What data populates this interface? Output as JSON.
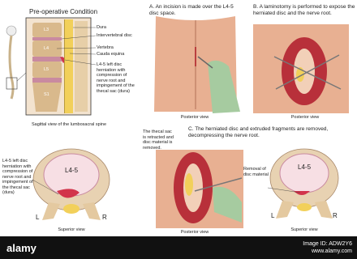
{
  "left_panel": {
    "title": "Pre-operative Condition",
    "levels": [
      "L3",
      "L4",
      "L5",
      "S1"
    ],
    "labels": [
      "Dura",
      "Intervertebral disc",
      "Vertebra",
      "Cauda equina",
      "L4-5 left disc herniation with compression of nerve root and impingement of the thecal sac (dura)"
    ],
    "caption": "Sagittal view of the lumbosacral spine",
    "superior": {
      "note": "L4-5 left disc herniation with compression of nerve root and impingement of the thecal sac (dura)",
      "disc": "L4-5",
      "left": "L",
      "right": "R",
      "caption": "Superior view"
    }
  },
  "step_a": {
    "text": "A. An incision is made over the L4-5 disc space.",
    "caption": "Posterior view"
  },
  "step_b": {
    "text": "B. A laminotomy is performed to expose the herniated disc and the nerve root.",
    "caption": "Posterior view"
  },
  "step_c": {
    "text": "C. The herniated disc and extruded fragments are removed, decompressing the nerve root.",
    "note": "The thecal sac is retracted and disc material is removed.",
    "caption": "Posterior view",
    "superior": {
      "note": "Removal of disc material",
      "disc": "L4-5",
      "left": "L",
      "right": "R",
      "caption": "Superior view"
    }
  },
  "footer": {
    "brand": "alamy",
    "id": "Image ID: ADW2Y6",
    "url": "www.alamy.com"
  }
}
